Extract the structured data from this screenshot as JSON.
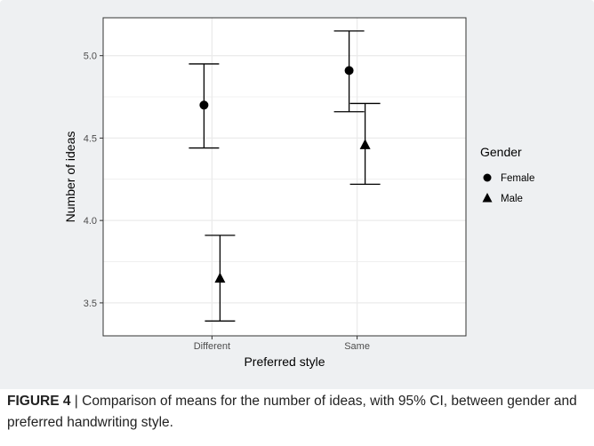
{
  "figure": {
    "caption_label": "FIGURE 4",
    "caption_sep": " | ",
    "caption_text": "Comparison of means for the number of ideas, with 95% CI, between gender and preferred handwriting style."
  },
  "colors": {
    "panel_background": "#eef0f2",
    "plot_background": "#ffffff",
    "grid": "#ebebeb",
    "border": "#333333",
    "marks": "#000000"
  },
  "chart_data": {
    "type": "scatter",
    "subtype": "point-with-errorbars",
    "title": "",
    "xlabel": "Preferred style",
    "ylabel": "Number of ideas",
    "categories": [
      "Different",
      "Same"
    ],
    "ylim": [
      3.3,
      5.23
    ],
    "yticks": [
      3.5,
      4.0,
      4.5,
      5.0
    ],
    "ytick_labels": [
      "3.5",
      "4.0",
      "4.5",
      "5.0"
    ],
    "grid": true,
    "legend": {
      "title": "Gender",
      "position": "right"
    },
    "series": [
      {
        "name": "Female",
        "marker": "circle",
        "values": [
          4.7,
          4.91
        ],
        "ci_low": [
          4.44,
          4.66
        ],
        "ci_high": [
          4.95,
          5.15
        ]
      },
      {
        "name": "Male",
        "marker": "triangle",
        "values": [
          3.65,
          4.46
        ],
        "ci_low": [
          3.39,
          4.22
        ],
        "ci_high": [
          3.91,
          4.71
        ]
      }
    ]
  }
}
